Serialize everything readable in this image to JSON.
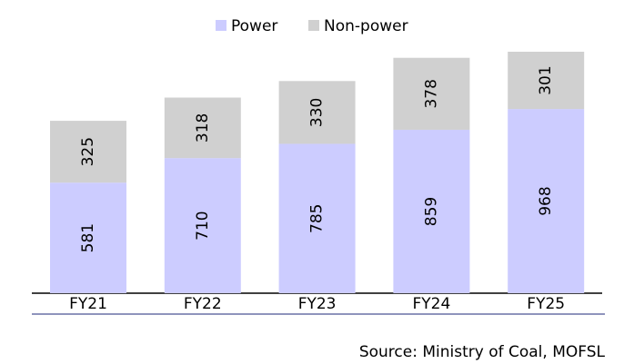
{
  "chart_data": {
    "type": "stacked_bar",
    "categories": [
      "FY21",
      "FY22",
      "FY23",
      "FY24",
      "FY25"
    ],
    "series": [
      {
        "name": "Power",
        "color": "#ccccff",
        "values": [
          581,
          710,
          785,
          859,
          968
        ]
      },
      {
        "name": "Non-power",
        "color": "#d0d0d0",
        "values": [
          325,
          318,
          330,
          378,
          301
        ]
      }
    ],
    "source": "Source: Ministry of Coal, MOFSL"
  }
}
